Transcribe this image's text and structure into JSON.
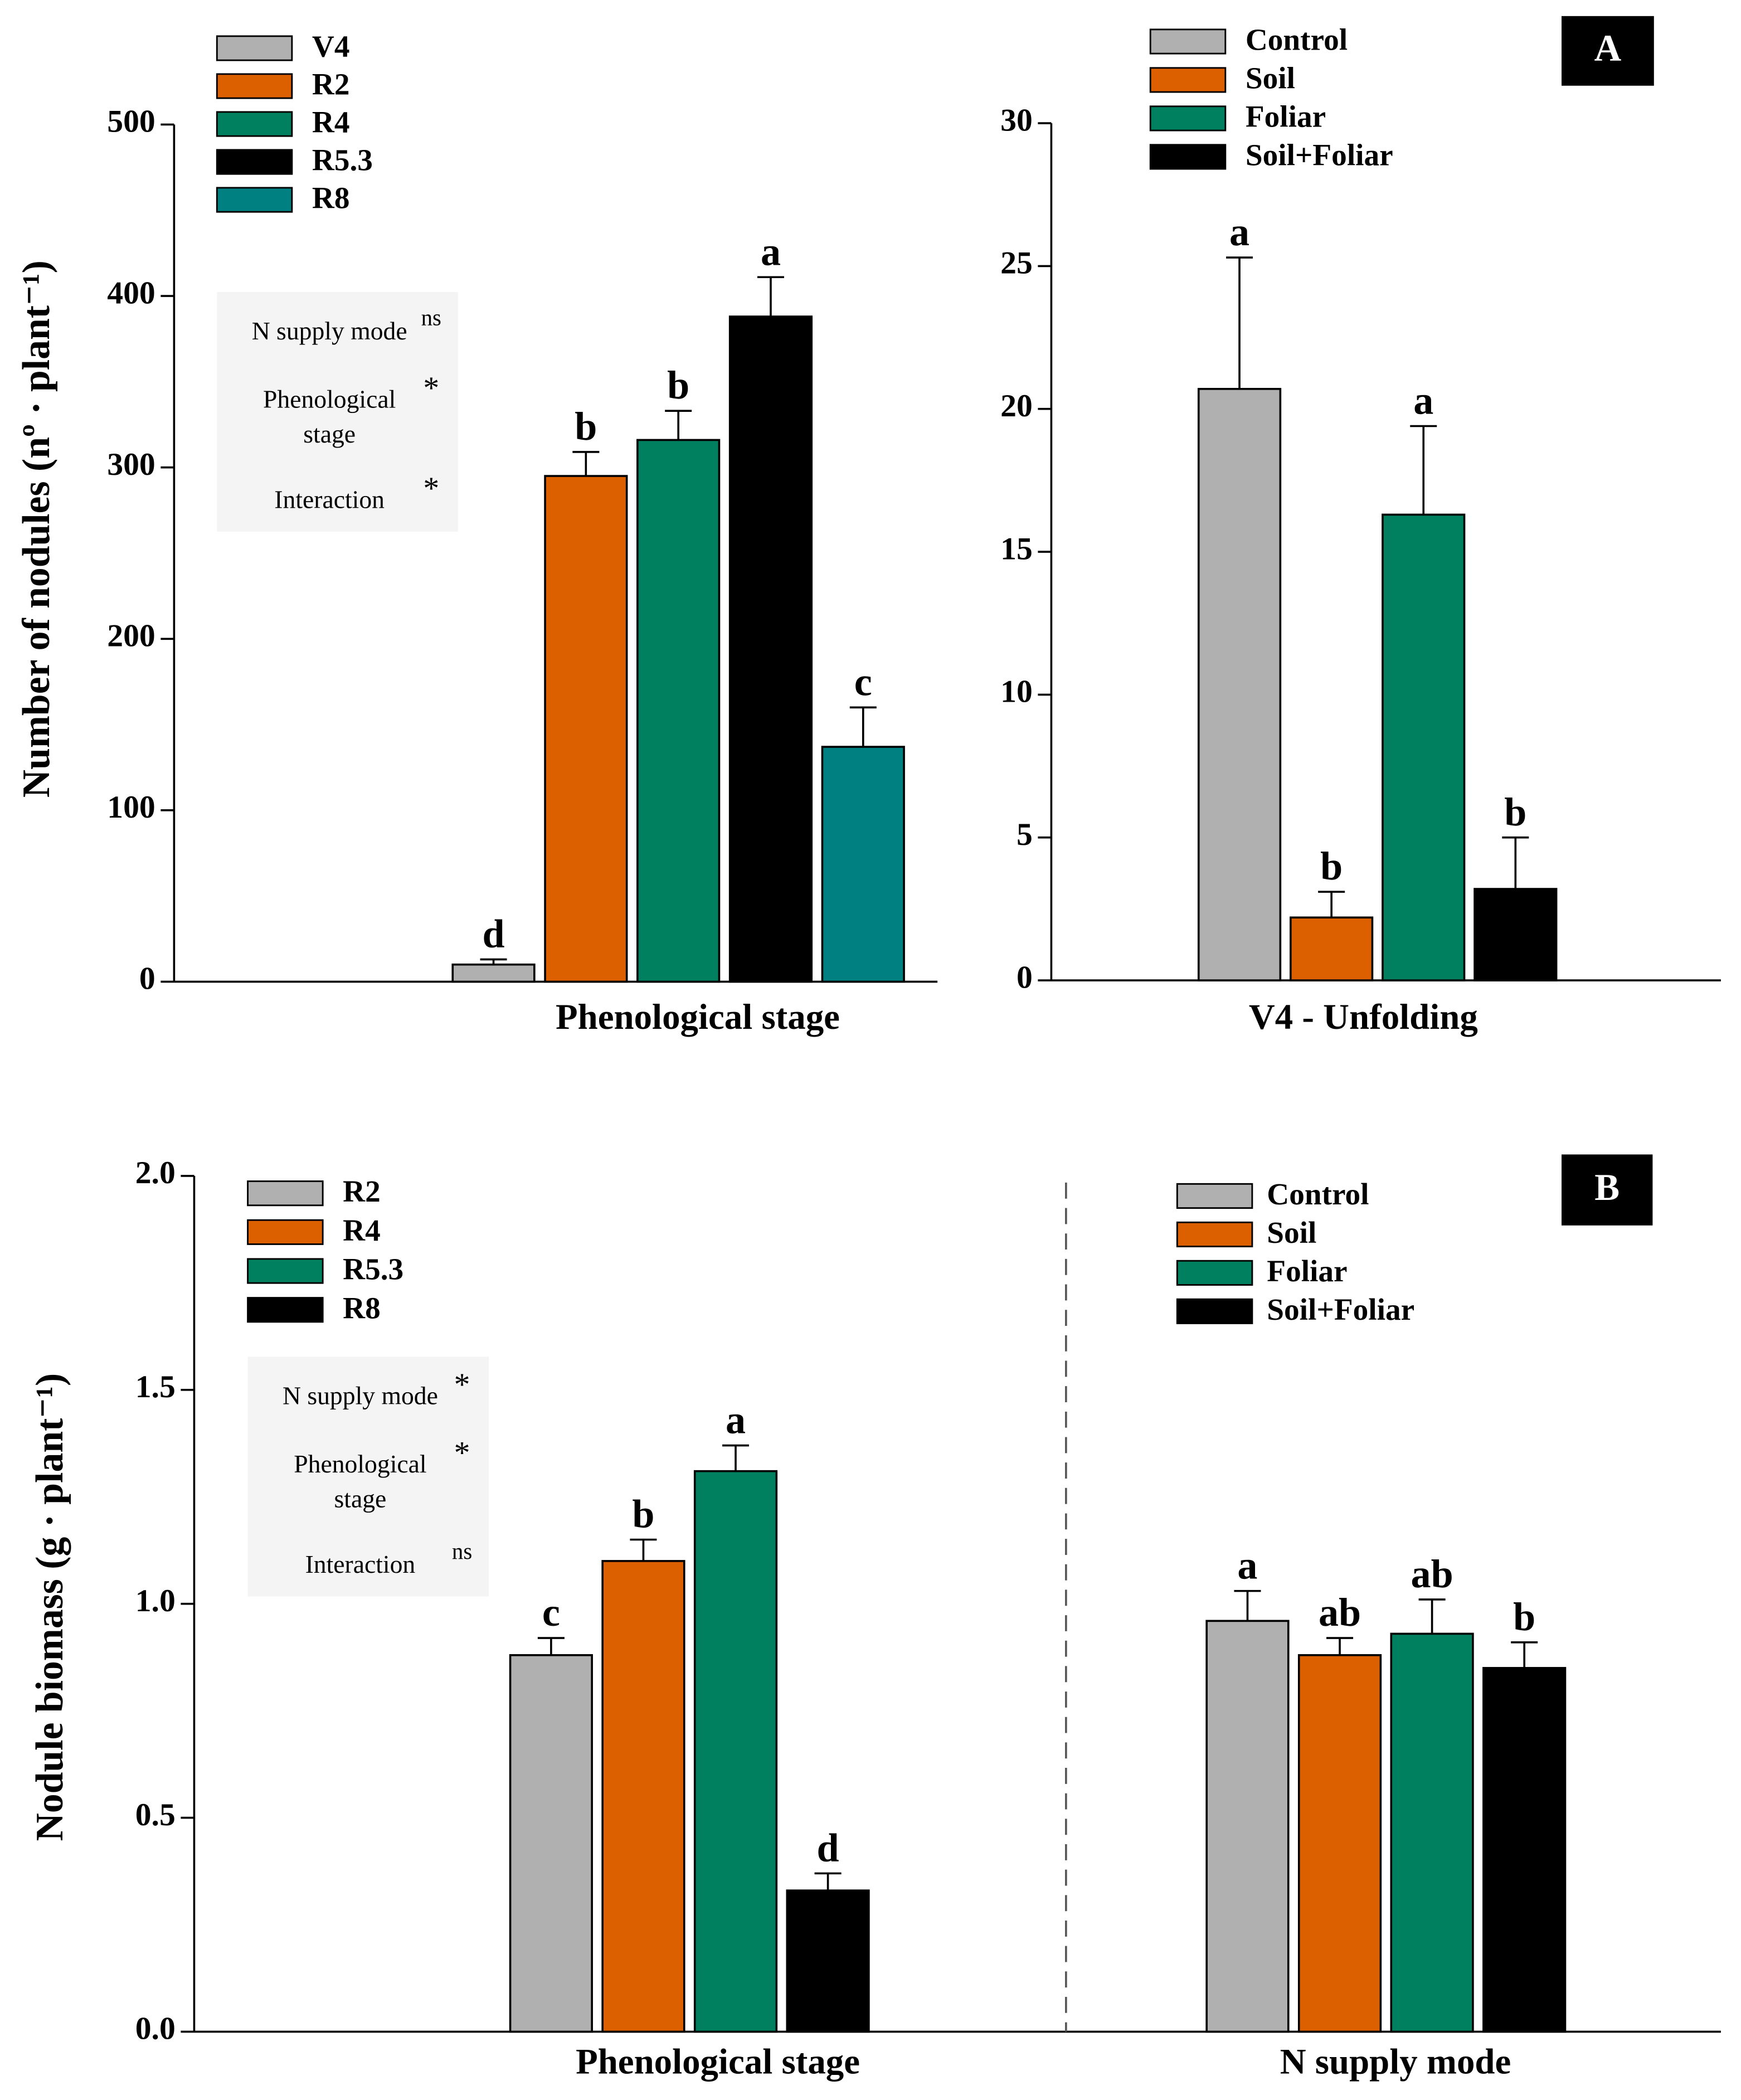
{
  "chart_data": [
    {
      "type": "bar",
      "ylabel": "Number of nodules (nº · plant⁻¹)",
      "xlabel": "Phenological stage",
      "ylim": [
        0,
        500
      ],
      "yticks": [
        0,
        100,
        200,
        300,
        400,
        500
      ],
      "series": [
        {
          "name": "V4",
          "color": "#b0b0b0",
          "values": [
            10
          ],
          "errors": [
            3
          ],
          "letters": [
            "d"
          ]
        },
        {
          "name": "R2",
          "color": "#dd6000",
          "values": [
            295
          ],
          "errors": [
            14
          ],
          "letters": [
            "b"
          ]
        },
        {
          "name": "R4",
          "color": "#00805f",
          "values": [
            316
          ],
          "errors": [
            17
          ],
          "letters": [
            "b"
          ]
        },
        {
          "name": "R5.3",
          "color": "#000000",
          "values": [
            388
          ],
          "errors": [
            23
          ],
          "letters": [
            "a"
          ]
        },
        {
          "name": "R8",
          "color": "#008080",
          "values": [
            137
          ],
          "errors": [
            23
          ],
          "letters": [
            "c"
          ]
        }
      ],
      "stats": [
        {
          "label": [
            "N supply mode"
          ],
          "sig": "ns"
        },
        {
          "label": [
            "Phenological",
            "stage"
          ],
          "sig": "*"
        },
        {
          "label": [
            "Interaction"
          ],
          "sig": "*"
        }
      ]
    },
    {
      "type": "bar",
      "xlabel": "V4 - Unfolding",
      "panel": "A",
      "ylim": [
        0,
        30
      ],
      "yticks": [
        0,
        5,
        10,
        15,
        20,
        25,
        30
      ],
      "series": [
        {
          "name": "Control",
          "color": "#b0b0b0",
          "values": [
            20.7
          ],
          "errors": [
            4.6
          ],
          "letters": [
            "a"
          ]
        },
        {
          "name": "Soil",
          "color": "#dd6000",
          "values": [
            2.2
          ],
          "errors": [
            0.9
          ],
          "letters": [
            "b"
          ]
        },
        {
          "name": "Foliar",
          "color": "#00805f",
          "values": [
            16.3
          ],
          "errors": [
            3.1
          ],
          "letters": [
            "a"
          ]
        },
        {
          "name": "Soil+Foliar",
          "color": "#000000",
          "values": [
            3.2
          ],
          "errors": [
            1.8
          ],
          "letters": [
            "b"
          ]
        }
      ]
    },
    {
      "type": "bar",
      "ylabel": "Nodule biomass (g · plant⁻¹)",
      "xlabel": "Phenological stage",
      "ylim": [
        0,
        2
      ],
      "yticks": [
        {
          "value": 0,
          "label": "0.0"
        },
        0.5,
        {
          "value": 1,
          "label": "1.0"
        },
        1.5,
        {
          "value": 2,
          "label": "2.0"
        }
      ],
      "series": [
        {
          "name": "R2",
          "color": "#b0b0b0",
          "values": [
            0.88
          ],
          "errors": [
            0.04
          ],
          "letters": [
            "c"
          ]
        },
        {
          "name": "R4",
          "color": "#dd6000",
          "values": [
            1.1
          ],
          "errors": [
            0.05
          ],
          "letters": [
            "b"
          ]
        },
        {
          "name": "R5.3",
          "color": "#00805f",
          "values": [
            1.31
          ],
          "errors": [
            0.06
          ],
          "letters": [
            "a"
          ]
        },
        {
          "name": "R8",
          "color": "#000000",
          "values": [
            0.33
          ],
          "errors": [
            0.04
          ],
          "letters": [
            "d"
          ]
        }
      ],
      "stats": [
        {
          "label": [
            "N supply mode"
          ],
          "sig": "*"
        },
        {
          "label": [
            "Phenological",
            "stage"
          ],
          "sig": "*"
        },
        {
          "label": [
            "Interaction"
          ],
          "sig": "ns"
        }
      ]
    },
    {
      "type": "bar",
      "xlabel": "N supply mode",
      "panel": "B",
      "ylim": [
        0,
        2
      ],
      "series": [
        {
          "name": "Control",
          "color": "#b0b0b0",
          "values": [
            0.96
          ],
          "errors": [
            0.07
          ],
          "letters": [
            "a"
          ]
        },
        {
          "name": "Soil",
          "color": "#dd6000",
          "values": [
            0.88
          ],
          "errors": [
            0.04
          ],
          "letters": [
            "ab"
          ]
        },
        {
          "name": "Foliar",
          "color": "#00805f",
          "values": [
            0.93
          ],
          "errors": [
            0.08
          ],
          "letters": [
            "ab"
          ]
        },
        {
          "name": "Soil+Foliar",
          "color": "#000000",
          "values": [
            0.85
          ],
          "errors": [
            0.06
          ],
          "letters": [
            "b"
          ]
        }
      ]
    }
  ]
}
